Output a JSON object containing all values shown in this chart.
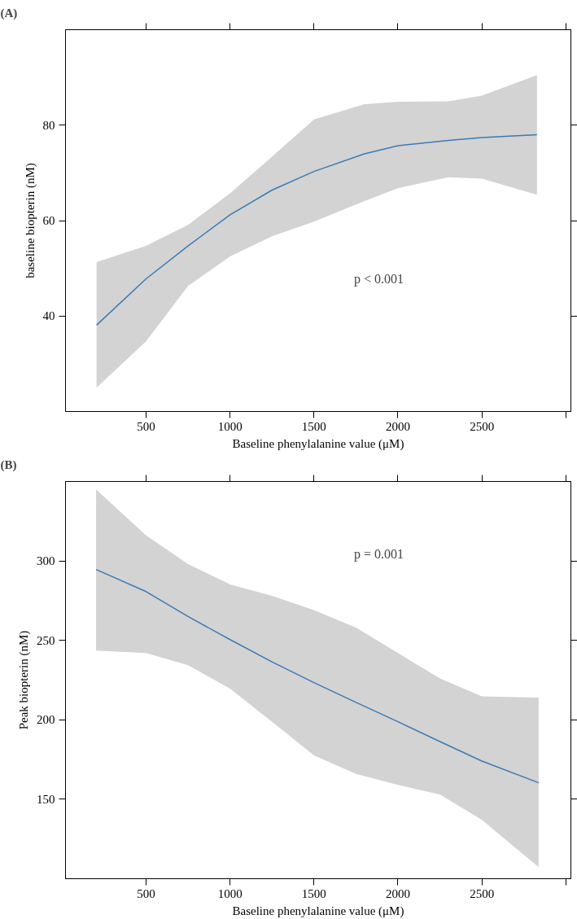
{
  "chart_data": [
    {
      "type": "line",
      "title": "(A)",
      "xlabel": "Baseline phenylalanine value (μM)",
      "ylabel": "baseline biopterin (nM)",
      "annotations": [
        "p < 0.001"
      ],
      "x": [
        205,
        500,
        750,
        1000,
        1250,
        1500,
        1800,
        2000,
        2300,
        2500,
        2828
      ],
      "series": [
        {
          "color": "#3b7ab5",
          "values": [
            38.1,
            47.8,
            54.7,
            61.2,
            66.4,
            70.3,
            74,
            75.7,
            76.8,
            77.4,
            78.0
          ],
          "lower": [
            25.0,
            34.7,
            46.3,
            52.5,
            56.7,
            59.8,
            64.1,
            66.8,
            69.1,
            68.8,
            65.4
          ],
          "upper": [
            51.3,
            54.7,
            59.1,
            65.7,
            73.4,
            81.2,
            84.4,
            84.9,
            85,
            86.2,
            90.5
          ]
        }
      ],
      "xlim": [
        20,
        3030
      ],
      "xticks": [
        500,
        1000,
        1500,
        2000,
        2500,
        {
          "value": 3000,
          "label": null
        }
      ],
      "ylim": [
        20,
        100
      ],
      "yticks": [
        40,
        60,
        80
      ],
      "grid": false,
      "marker": "none",
      "line_style": "solid"
    },
    {
      "type": "line",
      "title": "(B)",
      "xlabel": "Baseline phenylalanine value (μM)",
      "ylabel": "Peak biopterin (nM)",
      "annotations": [
        "p = 0.001"
      ],
      "x": [
        202,
        500,
        750,
        1000,
        1250,
        1500,
        1750,
        2000,
        2250,
        2500,
        2838
      ],
      "series": [
        {
          "color": "#3b7ab5",
          "values": [
            294.6,
            280.7,
            265,
            250.5,
            236.5,
            223.4,
            211,
            198.8,
            186.3,
            174,
            160.4
          ],
          "lower": [
            243.6,
            242,
            234.4,
            219.6,
            198.8,
            177.6,
            166,
            159,
            153,
            137,
            107.3
          ],
          "upper": [
            345,
            316,
            298,
            285.2,
            278,
            269,
            258,
            242,
            226,
            214.8,
            214
          ]
        }
      ],
      "xlim": [
        20,
        3030
      ],
      "xticks": [
        500,
        1000,
        1500,
        2000,
        2500,
        {
          "value": 3000,
          "label": null
        }
      ],
      "ylim": [
        100,
        350
      ],
      "yticks": [
        150,
        200,
        250,
        300
      ],
      "grid": false,
      "marker": "none",
      "line_style": "solid"
    }
  ]
}
